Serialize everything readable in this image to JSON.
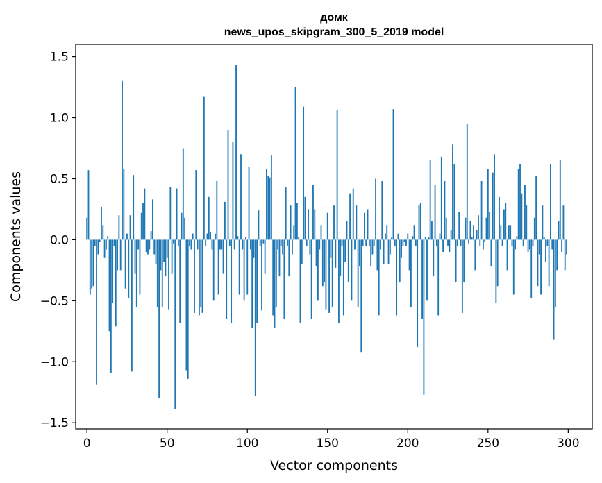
{
  "chart_data": {
    "type": "bar",
    "title": "домк",
    "subtitle": "news_upos_skipgram_300_5_2019 model",
    "xlabel": "Vector components",
    "ylabel": "Components values",
    "xlim": [
      -7,
      315
    ],
    "ylim": [
      -1.55,
      1.6
    ],
    "xticks": [
      0,
      50,
      100,
      150,
      200,
      250,
      300
    ],
    "yticks": [
      -1.5,
      -1.0,
      -0.5,
      0.0,
      0.5,
      1.0,
      1.5
    ],
    "xtick_labels": [
      "0",
      "50",
      "100",
      "150",
      "200",
      "250",
      "300"
    ],
    "ytick_labels": [
      "−1.5",
      "−1.0",
      "−0.5",
      "0.0",
      "0.5",
      "1.0",
      "1.5"
    ],
    "bar_color": "#1f77b4",
    "grid": false,
    "x": [
      0,
      1,
      2,
      3,
      4,
      5,
      6,
      7,
      8,
      9,
      10,
      11,
      12,
      13,
      14,
      15,
      16,
      17,
      18,
      19,
      20,
      21,
      22,
      23,
      24,
      25,
      26,
      27,
      28,
      29,
      30,
      31,
      32,
      33,
      34,
      35,
      36,
      37,
      38,
      39,
      40,
      41,
      42,
      43,
      44,
      45,
      46,
      47,
      48,
      49,
      50,
      51,
      52,
      53,
      54,
      55,
      56,
      57,
      58,
      59,
      60,
      61,
      62,
      63,
      64,
      65,
      66,
      67,
      68,
      69,
      70,
      71,
      72,
      73,
      74,
      75,
      76,
      77,
      78,
      79,
      80,
      81,
      82,
      83,
      84,
      85,
      86,
      87,
      88,
      89,
      90,
      91,
      92,
      93,
      94,
      95,
      96,
      97,
      98,
      99,
      100,
      101,
      102,
      103,
      104,
      105,
      106,
      107,
      108,
      109,
      110,
      111,
      112,
      113,
      114,
      115,
      116,
      117,
      118,
      119,
      120,
      121,
      122,
      123,
      124,
      125,
      126,
      127,
      128,
      129,
      130,
      131,
      132,
      133,
      134,
      135,
      136,
      137,
      138,
      139,
      140,
      141,
      142,
      143,
      144,
      145,
      146,
      147,
      148,
      149,
      150,
      151,
      152,
      153,
      154,
      155,
      156,
      157,
      158,
      159,
      160,
      161,
      162,
      163,
      164,
      165,
      166,
      167,
      168,
      169,
      170,
      171,
      172,
      173,
      174,
      175,
      176,
      177,
      178,
      179,
      180,
      181,
      182,
      183,
      184,
      185,
      186,
      187,
      188,
      189,
      190,
      191,
      192,
      193,
      194,
      195,
      196,
      197,
      198,
      199,
      200,
      201,
      202,
      203,
      204,
      205,
      206,
      207,
      208,
      209,
      210,
      211,
      212,
      213,
      214,
      215,
      216,
      217,
      218,
      219,
      220,
      221,
      222,
      223,
      224,
      225,
      226,
      227,
      228,
      229,
      230,
      231,
      232,
      233,
      234,
      235,
      236,
      237,
      238,
      239,
      240,
      241,
      242,
      243,
      244,
      245,
      246,
      247,
      248,
      249,
      250,
      251,
      252,
      253,
      254,
      255,
      256,
      257,
      258,
      259,
      260,
      261,
      262,
      263,
      264,
      265,
      266,
      267,
      268,
      269,
      270,
      271,
      272,
      273,
      274,
      275,
      276,
      277,
      278,
      279,
      280,
      281,
      282,
      283,
      284,
      285,
      286,
      287,
      288,
      289,
      290,
      291,
      292,
      293,
      294,
      295,
      296,
      297,
      298,
      299
    ],
    "values": [
      0.18,
      0.57,
      -0.45,
      -0.4,
      -0.38,
      -0.05,
      -1.19,
      -0.12,
      -0.02,
      0.27,
      0.12,
      -0.15,
      -0.08,
      0.03,
      -0.75,
      -1.09,
      -0.52,
      -0.05,
      -0.71,
      -0.25,
      0.2,
      -0.25,
      1.3,
      0.58,
      -0.4,
      0.05,
      -0.48,
      0.2,
      -1.08,
      0.53,
      -0.28,
      -0.55,
      -0.08,
      -0.45,
      0.22,
      0.3,
      0.42,
      -0.1,
      -0.12,
      -0.08,
      0.07,
      0.33,
      -0.12,
      -0.2,
      -0.55,
      -1.3,
      -0.25,
      -0.55,
      -0.18,
      -0.3,
      -0.15,
      -0.57,
      0.43,
      -0.28,
      -0.03,
      -1.39,
      0.42,
      -0.05,
      -0.68,
      0.22,
      0.75,
      0.18,
      -1.07,
      -1.14,
      -0.05,
      -0.08,
      0.05,
      -0.6,
      0.57,
      -0.08,
      -0.62,
      -0.55,
      -0.6,
      1.17,
      -0.05,
      0.05,
      0.35,
      0.06,
      -0.08,
      -0.5,
      0.05,
      0.48,
      -0.45,
      -0.08,
      -0.08,
      -0.28,
      0.31,
      -0.65,
      0.9,
      -0.05,
      -0.68,
      0.8,
      -0.08,
      1.43,
      0.03,
      -0.45,
      0.7,
      -0.08,
      -0.5,
      0.02,
      -0.45,
      0.6,
      -0.08,
      -0.72,
      -0.15,
      -1.28,
      -0.68,
      0.24,
      -0.05,
      -0.58,
      -0.03,
      -0.28,
      0.58,
      0.52,
      0.51,
      0.69,
      -0.62,
      -0.72,
      -0.55,
      -0.08,
      -0.3,
      -0.05,
      -0.12,
      -0.65,
      0.43,
      -0.05,
      -0.3,
      0.28,
      -0.12,
      0.12,
      1.25,
      0.3,
      0.02,
      -0.68,
      -0.2,
      1.09,
      0.35,
      -0.05,
      0.25,
      -0.12,
      -0.65,
      0.45,
      0.25,
      -0.22,
      -0.5,
      -0.08,
      0.12,
      -0.38,
      -0.35,
      -0.57,
      0.22,
      -0.6,
      -0.15,
      -0.55,
      0.28,
      -0.23,
      1.06,
      -0.68,
      -0.3,
      -0.05,
      -0.62,
      -0.18,
      0.15,
      -0.35,
      0.38,
      -0.5,
      0.42,
      -0.08,
      0.28,
      -0.55,
      -0.22,
      -0.92,
      -0.05,
      0.22,
      -0.05,
      0.25,
      -0.05,
      -0.22,
      -0.12,
      -0.05,
      0.5,
      -0.25,
      -0.62,
      -0.08,
      0.48,
      -0.2,
      0.05,
      0.12,
      -0.2,
      -0.12,
      0.02,
      1.07,
      -0.05,
      -0.62,
      0.05,
      -0.35,
      -0.15,
      -0.05,
      -0.02,
      -0.05,
      0.05,
      -0.25,
      -0.55,
      0.03,
      0.12,
      -0.05,
      -0.88,
      0.28,
      0.3,
      -0.65,
      -1.27,
      0.02,
      -0.5,
      0.02,
      0.65,
      0.15,
      -0.3,
      0.45,
      -0.05,
      -0.62,
      0.05,
      0.68,
      -0.1,
      0.48,
      0.18,
      -0.05,
      -0.1,
      0.08,
      0.78,
      0.62,
      -0.35,
      -0.05,
      0.23,
      -0.05,
      -0.6,
      -0.35,
      0.18,
      0.95,
      -0.03,
      0.15,
      0.02,
      0.12,
      -0.25,
      0.08,
      0.2,
      -0.05,
      0.48,
      -0.08,
      -0.02,
      0.18,
      0.58,
      0.23,
      -0.22,
      0.55,
      0.7,
      -0.52,
      -0.38,
      0.35,
      0.12,
      -0.05,
      0.25,
      0.3,
      -0.25,
      0.12,
      0.12,
      -0.05,
      -0.45,
      -0.08,
      0.03,
      0.58,
      0.62,
      0.38,
      -0.05,
      0.45,
      0.28,
      -0.1,
      -0.08,
      -0.48,
      -0.05,
      0.18,
      0.52,
      -0.38,
      -0.12,
      -0.45,
      0.28,
      0.02,
      -0.18,
      -0.05,
      -0.38,
      0.62,
      -0.08,
      -0.82,
      -0.55,
      -0.25,
      0.15,
      0.65,
      -0.1,
      0.28,
      -0.25,
      -0.12
    ]
  }
}
